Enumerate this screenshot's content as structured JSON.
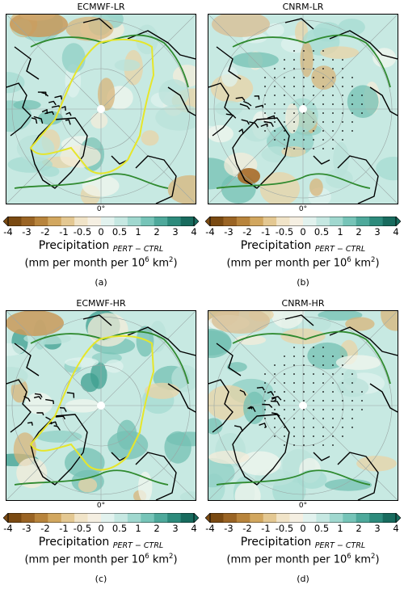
{
  "panels": [
    {
      "title": "ECMWF-LR",
      "letter": "(a)",
      "sea_ice_yellow": true,
      "stipple": false
    },
    {
      "title": "CNRM-LR",
      "letter": "(b)",
      "sea_ice_yellow": false,
      "stipple": true
    },
    {
      "title": "ECMWF-HR",
      "letter": "(c)",
      "sea_ice_yellow": true,
      "stipple": false
    },
    {
      "title": "CNRM-HR",
      "letter": "(d)",
      "sea_ice_yellow": false,
      "stipple": true
    }
  ],
  "map_labels": {
    "meridian": "0°"
  },
  "colorbar": {
    "ticks": [
      "-4",
      "-3",
      "-2",
      "-1",
      "-0.5",
      "0",
      "0.5",
      "1",
      "2",
      "3",
      "4"
    ],
    "colors": [
      "#7a4a12",
      "#9a6424",
      "#b8843c",
      "#d2a75f",
      "#e4c892",
      "#f1e4c8",
      "#f5efe2",
      "#e2f2ee",
      "#c6e8e2",
      "#a0d8cf",
      "#76c4b8",
      "#4ea99b",
      "#2d8b7c",
      "#186b5e"
    ],
    "label_main": "Precipitation",
    "label_sub": "PERT − CTRL",
    "units_prefix": "(mm per month per 10",
    "units_exp1": "6",
    "units_mid": " km",
    "units_exp2": "2",
    "units_suffix": ")"
  }
}
